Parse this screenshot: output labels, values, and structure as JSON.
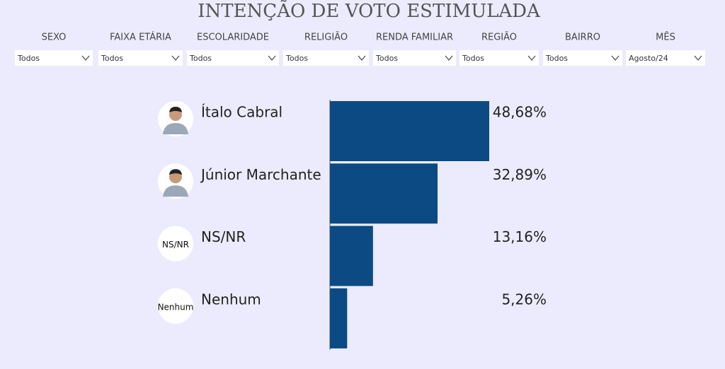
{
  "header": {
    "title": "INTENÇÃO DE VOTO ESTIMULADA"
  },
  "filters": [
    {
      "label": "SEXO",
      "value": "Todos"
    },
    {
      "label": "FAIXA ETÁRIA",
      "value": "Todos"
    },
    {
      "label": "ESCOLARIDADE",
      "value": "Todos"
    },
    {
      "label": "RELIGIÃO",
      "value": "Todos"
    },
    {
      "label": "RENDA FAMILIAR",
      "value": "Todos"
    },
    {
      "label": "REGIÃO",
      "value": "Todos"
    },
    {
      "label": "BAIRRO",
      "value": "Todos"
    },
    {
      "label": "MÊS",
      "value": "Agosto/24"
    }
  ],
  "chart_data": {
    "type": "bar",
    "orientation": "horizontal",
    "categories": [
      "Ítalo Cabral",
      "Júnior Marchante",
      "NS/NR",
      "Nenhum"
    ],
    "avatar_labels": [
      null,
      null,
      "NS/NR",
      "Nenhum"
    ],
    "values": [
      48.68,
      32.89,
      13.16,
      5.26
    ],
    "value_labels": [
      "48,68%",
      "32,89%",
      "13,16%",
      "5,26%"
    ],
    "color": "#0b4a82"
  }
}
